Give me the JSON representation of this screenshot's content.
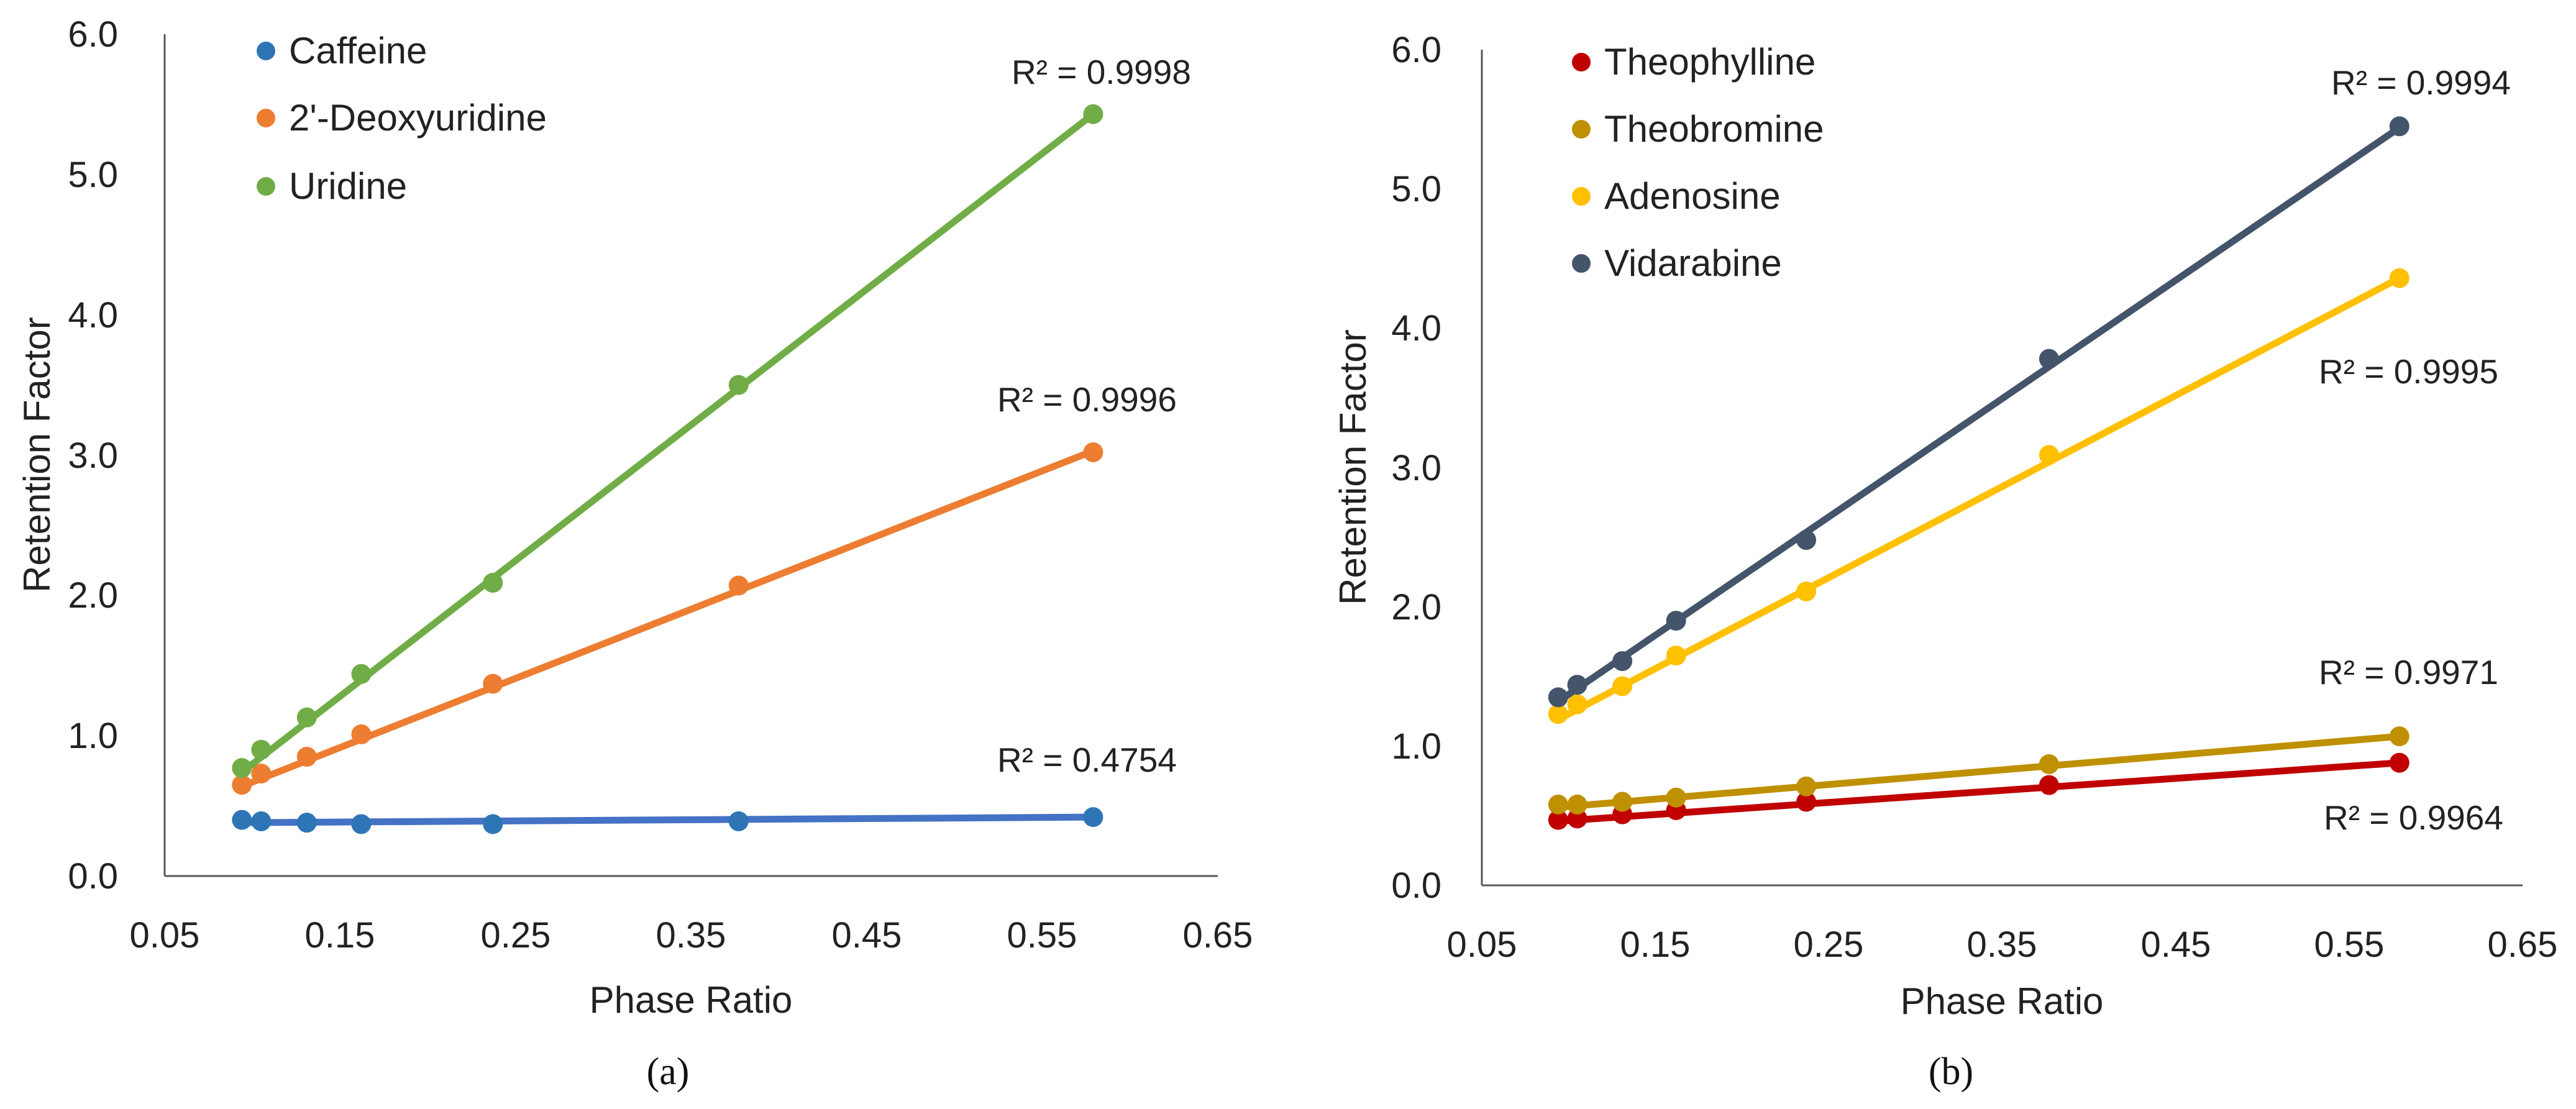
{
  "chart_data": [
    {
      "type": "scatter",
      "panel": "a",
      "caption": "(a)",
      "xlabel": "Phase Ratio",
      "ylabel": "Retention Factor",
      "xlim": [
        0.05,
        0.65
      ],
      "ylim": [
        0,
        6
      ],
      "xticks": [
        "0.05",
        "0.15",
        "0.25",
        "0.35",
        "0.45",
        "0.55",
        "0.65"
      ],
      "yticks": [
        "0.0",
        "1.0",
        "2.0",
        "3.0",
        "4.0",
        "5.0",
        "6.0"
      ],
      "legend_position": "top-left",
      "series": [
        {
          "name": "Caffeine",
          "color": "#2E75B6",
          "line_color": "#4472C4",
          "x": [
            0.094,
            0.105,
            0.131,
            0.162,
            0.237,
            0.377,
            0.579
          ],
          "y": [
            0.4,
            0.39,
            0.38,
            0.37,
            0.37,
            0.39,
            0.42
          ],
          "fit": [
            0.38,
            0.42
          ],
          "r2": "R² = 0.4754"
        },
        {
          "name": "2'-Deoxyuridine",
          "color": "#ED7D31",
          "line_color": "#ED7D31",
          "x": [
            0.094,
            0.105,
            0.131,
            0.162,
            0.237,
            0.377,
            0.579
          ],
          "y": [
            0.65,
            0.73,
            0.85,
            1.01,
            1.37,
            2.07,
            3.02
          ],
          "fit": [
            0.64,
            3.03
          ],
          "r2": "R² = 0.9996"
        },
        {
          "name": "Uridine",
          "color": "#70AD47",
          "line_color": "#70AD47",
          "x": [
            0.094,
            0.105,
            0.131,
            0.162,
            0.237,
            0.377,
            0.579
          ],
          "y": [
            0.77,
            0.9,
            1.13,
            1.44,
            2.09,
            3.5,
            5.43
          ],
          "fit": [
            0.74,
            5.43
          ],
          "r2": "R² = 0.9998"
        }
      ]
    },
    {
      "type": "scatter",
      "panel": "b",
      "caption": "(b)",
      "xlabel": "Phase Ratio",
      "ylabel": "Retention Factor",
      "xlim": [
        0.05,
        0.65
      ],
      "ylim": [
        0,
        6
      ],
      "xticks": [
        "0.05",
        "0.15",
        "0.25",
        "0.35",
        "0.45",
        "0.55",
        "0.65"
      ],
      "yticks": [
        "0.0",
        "1.0",
        "2.0",
        "3.0",
        "4.0",
        "5.0",
        "6.0"
      ],
      "legend_position": "top-left",
      "series": [
        {
          "name": "Theophylline",
          "color": "#C00000",
          "line_color": "#C00000",
          "x": [
            0.094,
            0.105,
            0.131,
            0.162,
            0.237,
            0.377,
            0.579
          ],
          "y": [
            0.47,
            0.48,
            0.51,
            0.54,
            0.6,
            0.72,
            0.88
          ],
          "fit": [
            0.46,
            0.88
          ],
          "r2": "R² = 0.9964"
        },
        {
          "name": "Theobromine",
          "color": "#BF9000",
          "line_color": "#BF9000",
          "x": [
            0.094,
            0.105,
            0.131,
            0.162,
            0.237,
            0.377,
            0.579
          ],
          "y": [
            0.58,
            0.58,
            0.6,
            0.63,
            0.71,
            0.87,
            1.07
          ],
          "fit": [
            0.56,
            1.07
          ],
          "r2": "R² = 0.9971"
        },
        {
          "name": "Adenosine",
          "color": "#FFC000",
          "line_color": "#FFC000",
          "x": [
            0.094,
            0.105,
            0.131,
            0.162,
            0.237,
            0.377,
            0.579
          ],
          "y": [
            1.23,
            1.3,
            1.43,
            1.65,
            2.11,
            3.09,
            4.36
          ],
          "fit": [
            1.19,
            4.36
          ],
          "r2": "R² = 0.9995"
        },
        {
          "name": "Vidarabine",
          "color": "#44546A",
          "line_color": "#44546A",
          "x": [
            0.094,
            0.105,
            0.131,
            0.162,
            0.237,
            0.377,
            0.579
          ],
          "y": [
            1.35,
            1.44,
            1.61,
            1.9,
            2.48,
            3.78,
            5.45
          ],
          "fit": [
            1.32,
            5.44
          ],
          "r2": "R² = 0.9994"
        }
      ]
    }
  ]
}
